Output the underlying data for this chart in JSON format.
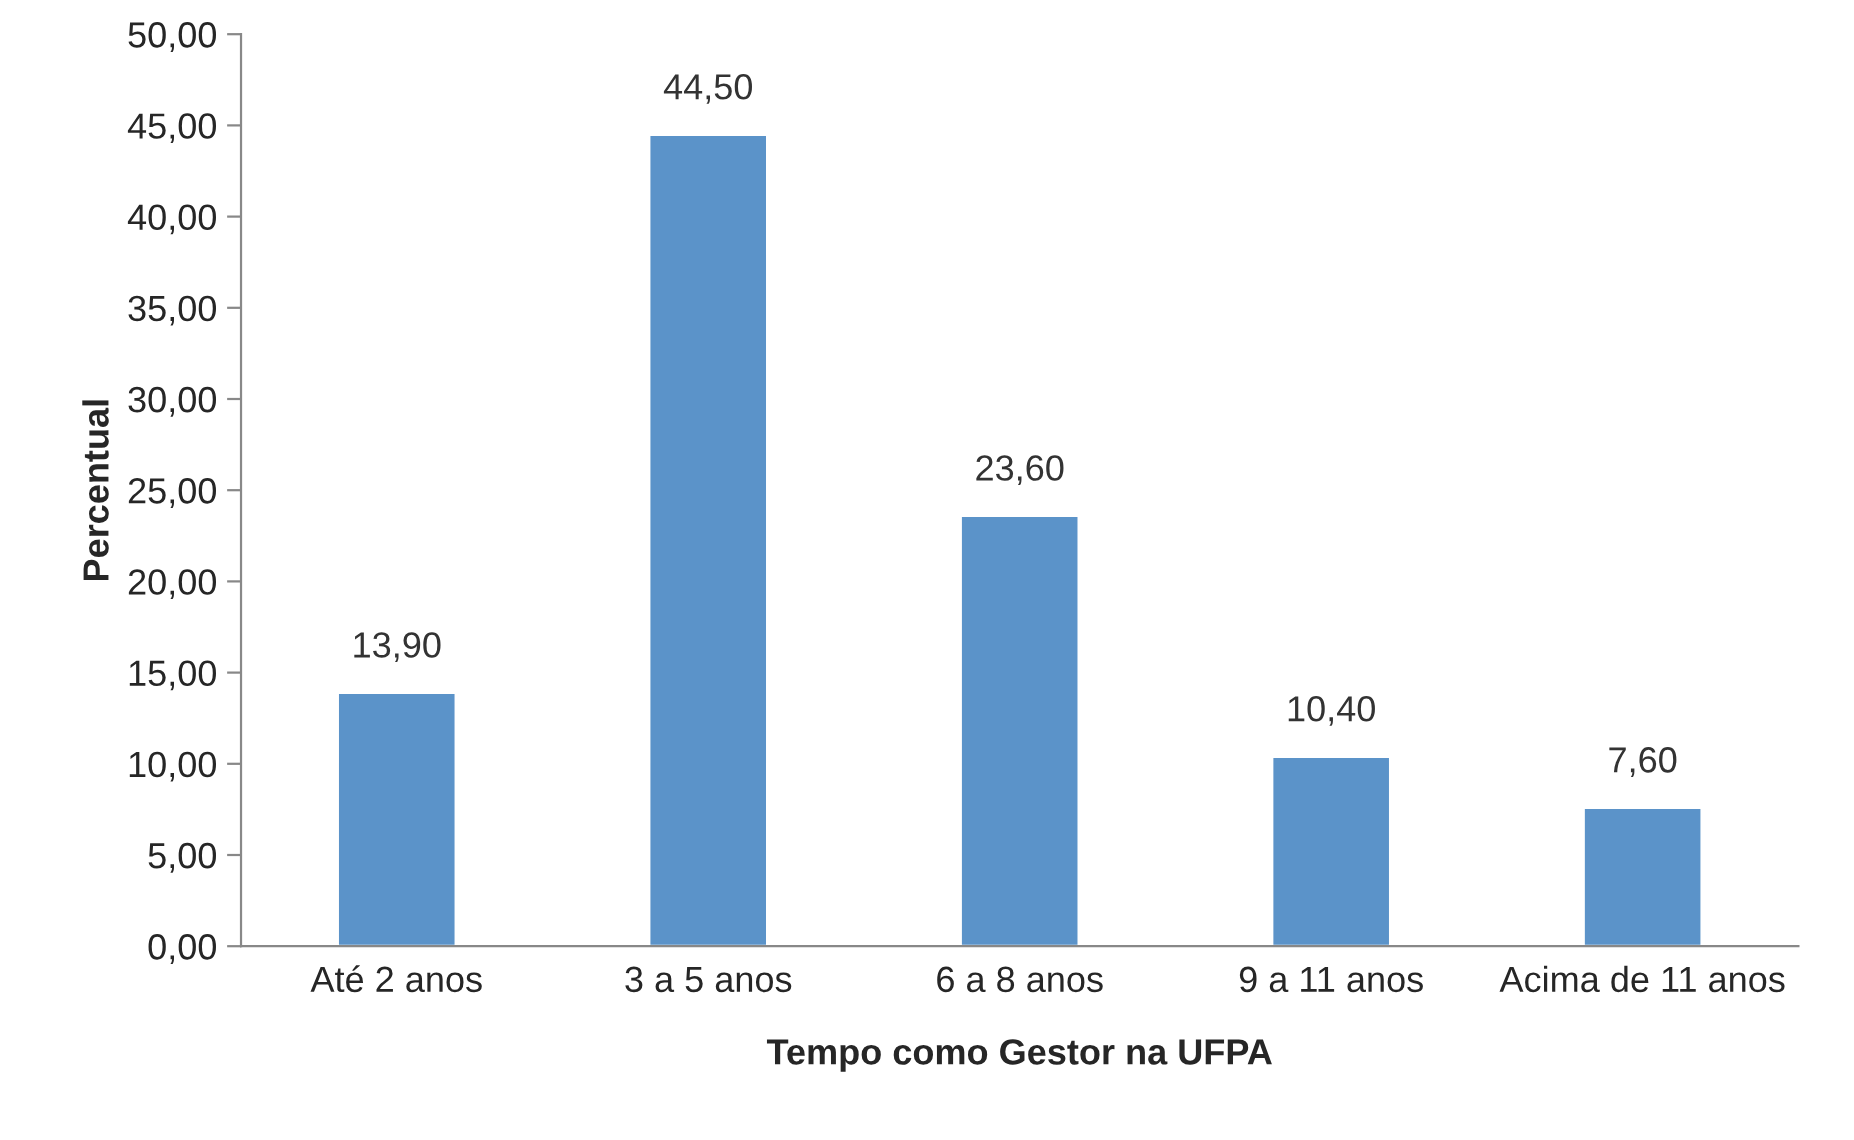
{
  "chart_data": {
    "type": "bar",
    "xlabel": "Tempo como Gestor na UFPA",
    "ylabel": "Percentual",
    "categories": [
      "Até 2 anos",
      "3 a 5 anos",
      "6 a 8 anos",
      "9 a 11 anos",
      "Acima de 11 anos"
    ],
    "values": [
      13.9,
      44.5,
      23.6,
      10.4,
      7.6
    ],
    "value_labels": [
      "13,90",
      "44,50",
      "23,60",
      "10,40",
      "7,60"
    ],
    "color": "#5b93c9",
    "ylim": [
      0,
      50
    ],
    "yticks": [
      {
        "value": 0,
        "label": "0,00"
      },
      {
        "value": 5,
        "label": "5,00"
      },
      {
        "value": 10,
        "label": "10,00"
      },
      {
        "value": 15,
        "label": "15,00"
      },
      {
        "value": 20,
        "label": "20,00"
      },
      {
        "value": 25,
        "label": "25,00"
      },
      {
        "value": 30,
        "label": "30,00"
      },
      {
        "value": 35,
        "label": "35,00"
      },
      {
        "value": 40,
        "label": "40,00"
      },
      {
        "value": 45,
        "label": "45,00"
      },
      {
        "value": 50,
        "label": "50,00"
      }
    ],
    "grid": false,
    "legend": false
  }
}
